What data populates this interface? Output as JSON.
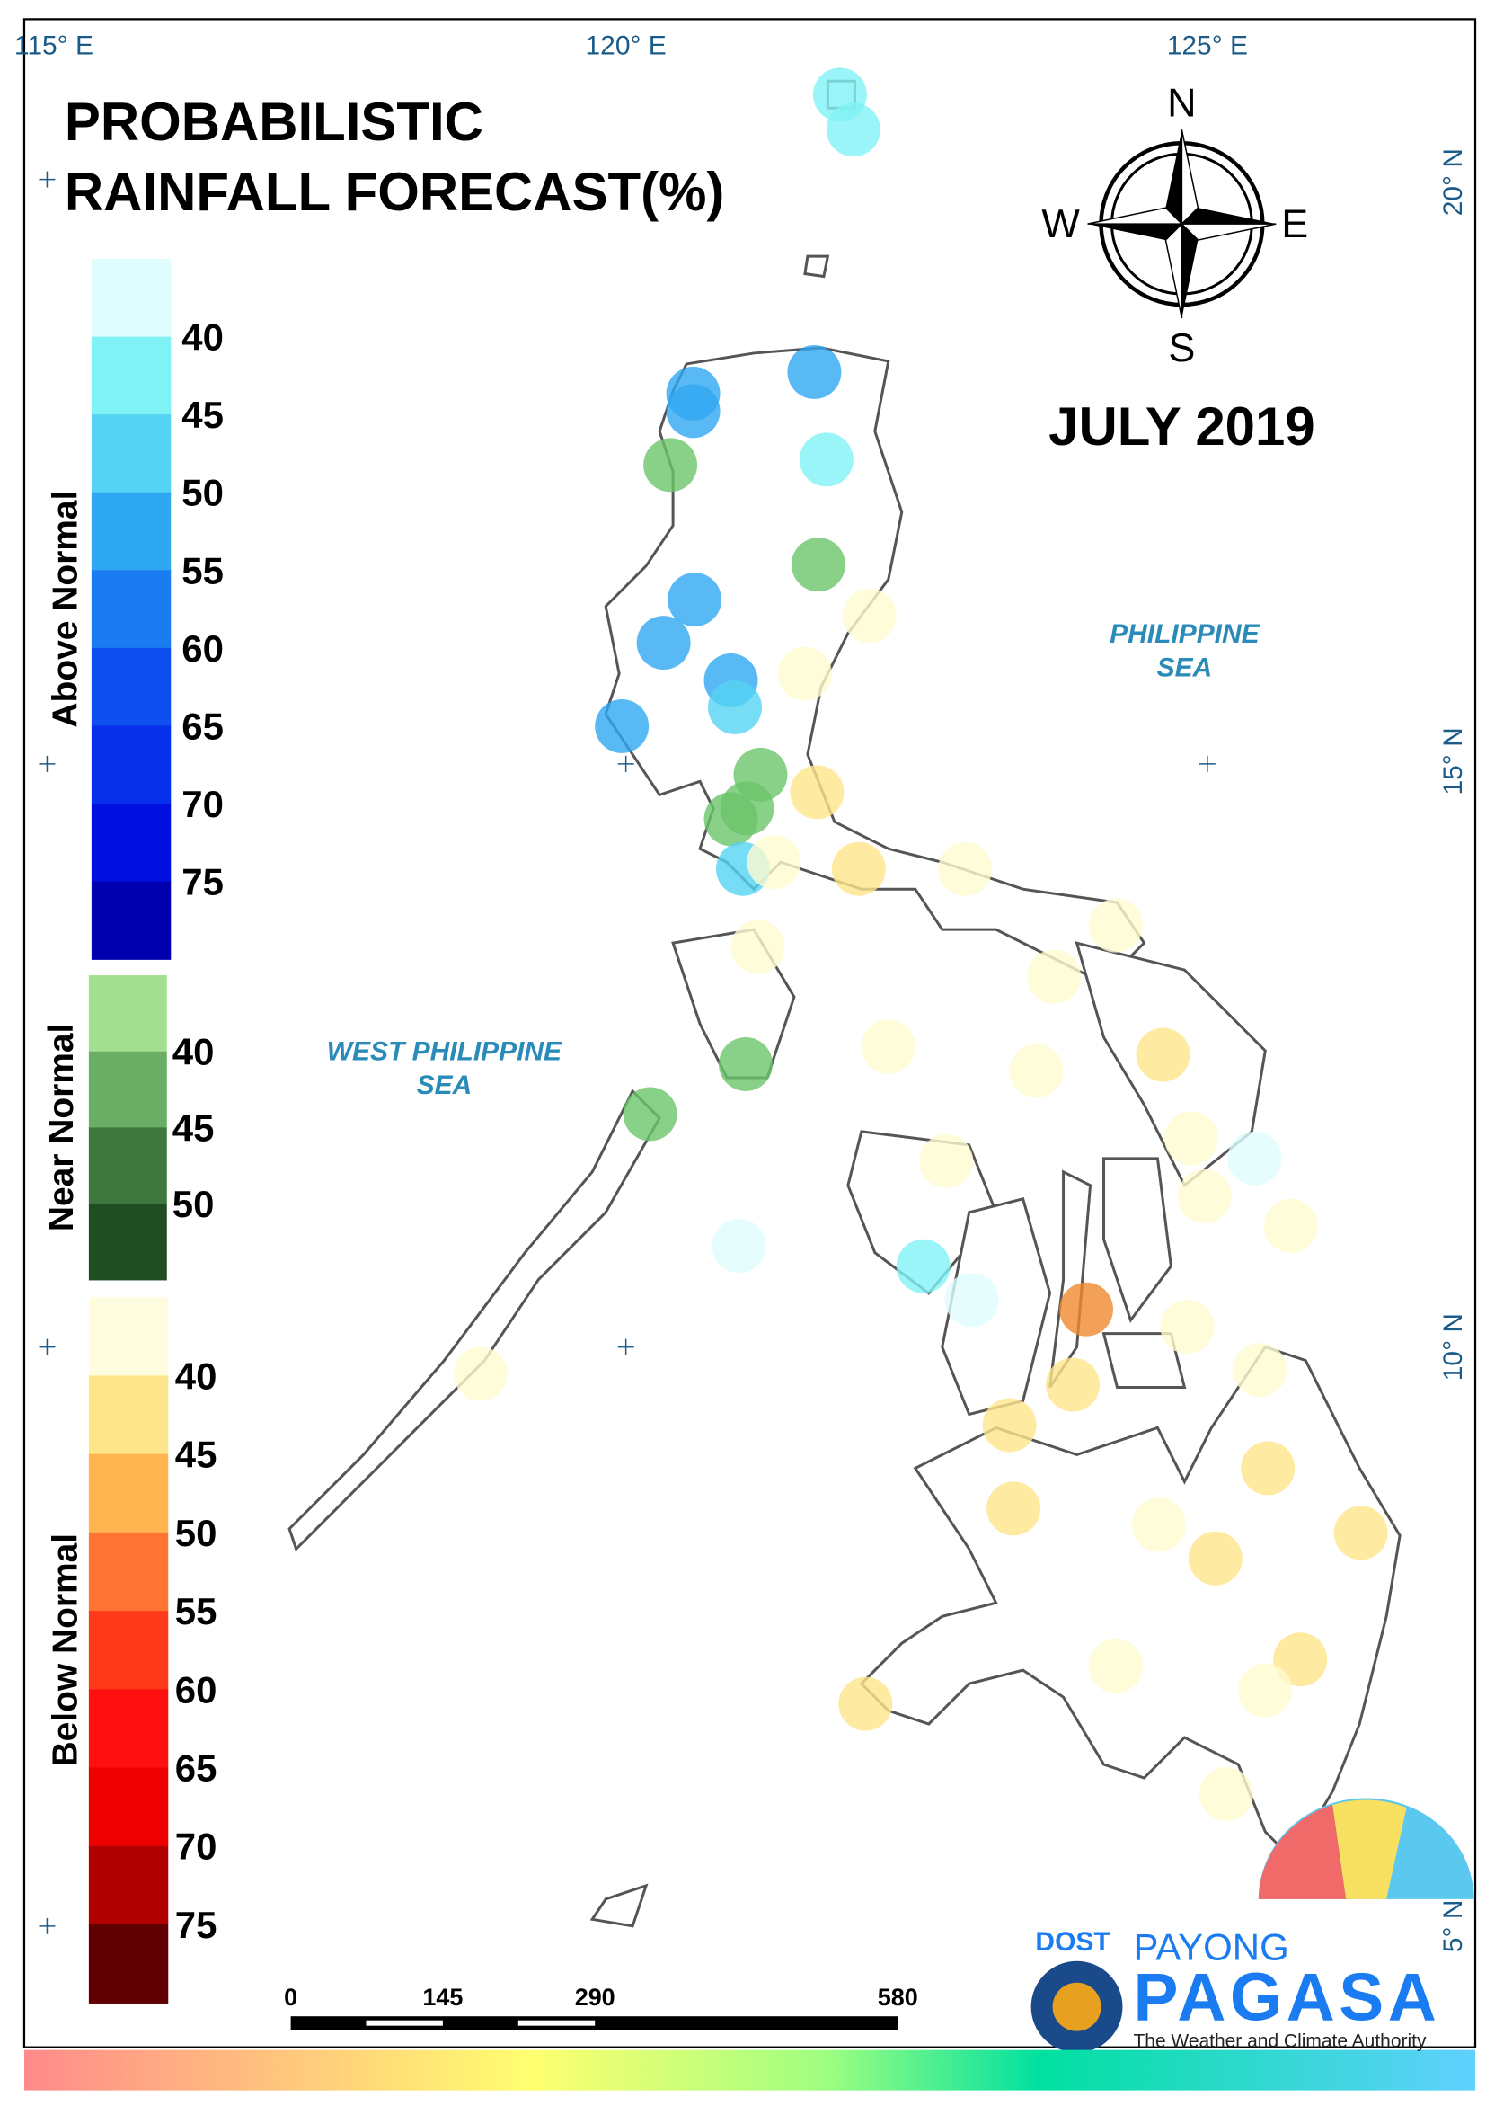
{
  "title": [
    "PROBABILISTIC",
    "RAINFALL FORECAST(%)"
  ],
  "period": "JULY 2019",
  "compass": {
    "north": "N",
    "east": "E",
    "south": "S",
    "west": "W"
  },
  "longitude_labels": [
    "115° E",
    "120° E",
    "125° E"
  ],
  "latitude_labels": [
    "20° N",
    "15° N",
    "10° N",
    "5° N"
  ],
  "sea_labels": [
    {
      "lines": [
        "PHILIPPINE",
        "SEA"
      ]
    },
    {
      "lines": [
        "WEST PHILIPPINE",
        "SEA"
      ]
    }
  ],
  "legend": [
    {
      "name": "Above Normal",
      "labels": [
        40,
        45,
        50,
        55,
        60,
        65,
        70,
        75
      ],
      "colors": [
        "#e0fdfd",
        "#7ff2f5",
        "#55d3f2",
        "#2fa8f2",
        "#1a7cf0",
        "#0f4ff0",
        "#0630ea",
        "#0010e0",
        "#0000b0"
      ]
    },
    {
      "name": "Near Normal",
      "labels": [
        40,
        45,
        50
      ],
      "colors": [
        "#a2df8f",
        "#6aae66",
        "#3e783e",
        "#214d22"
      ]
    },
    {
      "name": "Below Normal",
      "labels": [
        40,
        45,
        50,
        55,
        60,
        65,
        70,
        75
      ],
      "colors": [
        "#fffde0",
        "#ffe58a",
        "#ffb450",
        "#ff7433",
        "#ff3a1a",
        "#ff1010",
        "#ee0000",
        "#b00000",
        "#600000"
      ]
    }
  ],
  "scale_bar": {
    "labels": [
      0,
      145,
      290,
      580
    ]
  },
  "logo": {
    "agency": "DOST",
    "program": "PAYONG",
    "name": "PAGASA",
    "tagline": "The Weather and Climate Authority"
  }
}
